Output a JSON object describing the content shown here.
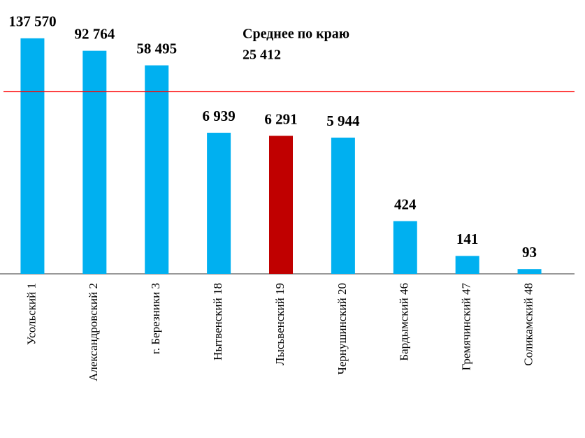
{
  "chart_data": {
    "type": "bar",
    "categories": [
      "Усольский 1",
      "Александровский 2",
      "г. Березники 3",
      "Нытвенский 18",
      "Лысьвенский 19",
      "Чернушинский 20",
      "Бардымский 46",
      "Гремячинский 47",
      "Соликамский 48"
    ],
    "values": [
      137570,
      92764,
      58495,
      6939,
      6291,
      5944,
      424,
      141,
      93
    ],
    "value_labels": [
      "137 570",
      "92 764",
      "58 495",
      "6 939",
      "6 291",
      "5 944",
      "424",
      "141",
      "93"
    ],
    "colors": [
      "#00b0f0",
      "#00b0f0",
      "#00b0f0",
      "#00b0f0",
      "#c00000",
      "#00b0f0",
      "#00b0f0",
      "#00b0f0",
      "#00b0f0"
    ],
    "ylim": [
      80,
      160000
    ],
    "log_scale": true,
    "average": {
      "label": "Среднее по краю",
      "value": 25412,
      "value_label": "25 412",
      "color": "#ff0000"
    }
  }
}
